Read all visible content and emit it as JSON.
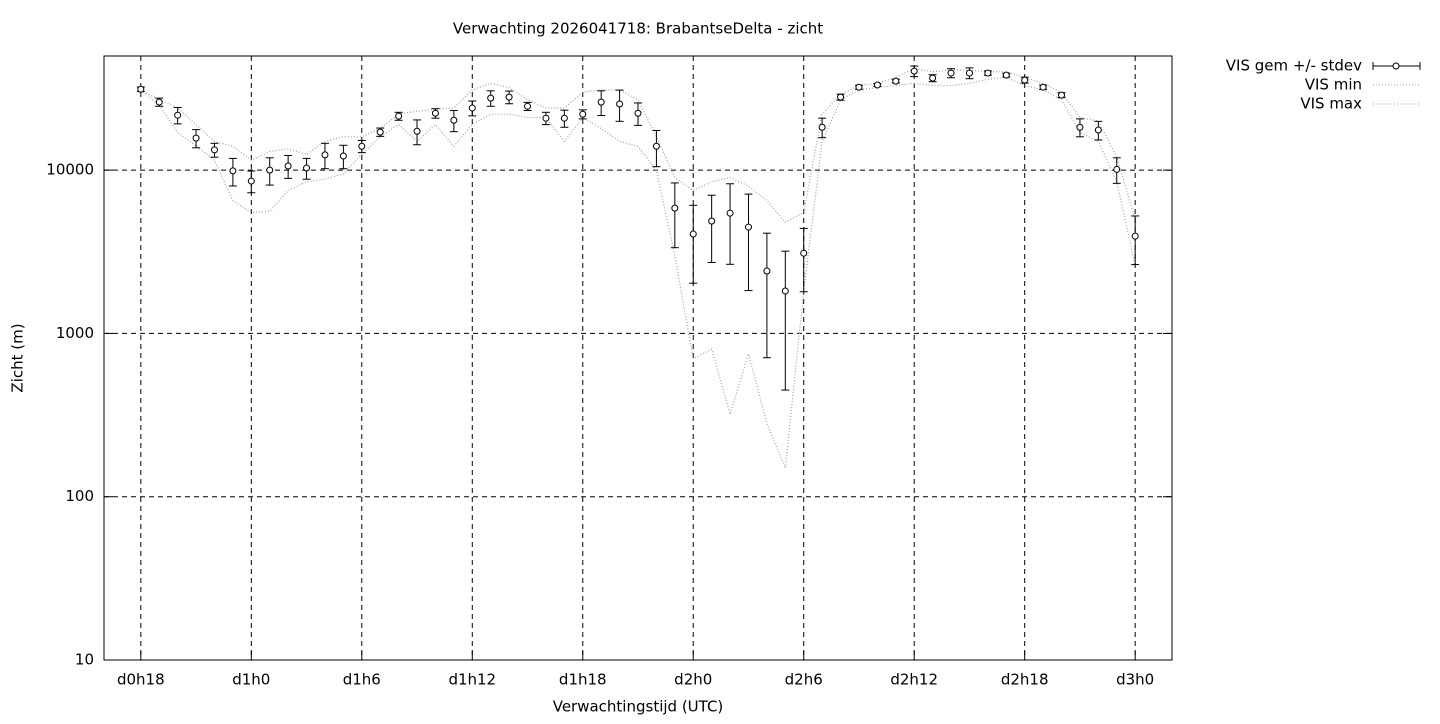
{
  "chart_data": {
    "type": "errorline",
    "title": "Verwachting 2026041718: BrabantseDelta - zicht",
    "x_label": "Verwachtingstijd (UTC)",
    "y_label": "Zicht (m)",
    "log_y": true,
    "grid": true,
    "legend": "outside-top-right",
    "xlim": [
      16,
      74
    ],
    "ylim": [
      10,
      50000
    ],
    "xticks": [
      {
        "value": 18,
        "label": "d0h18"
      },
      {
        "value": 24,
        "label": "d1h0"
      },
      {
        "value": 30,
        "label": "d1h6"
      },
      {
        "value": 36,
        "label": "d1h12"
      },
      {
        "value": 42,
        "label": "d1h18"
      },
      {
        "value": 48,
        "label": "d2h0"
      },
      {
        "value": 54,
        "label": "d2h6"
      },
      {
        "value": 60,
        "label": "d2h12"
      },
      {
        "value": 66,
        "label": "d2h18"
      },
      {
        "value": 72,
        "label": "d3h0"
      }
    ],
    "yticks": [
      10,
      100,
      1000,
      10000
    ],
    "x": [
      18,
      19,
      20,
      21,
      22,
      23,
      24,
      25,
      26,
      27,
      28,
      29,
      30,
      31,
      32,
      33,
      34,
      35,
      36,
      37,
      38,
      39,
      40,
      41,
      42,
      43,
      44,
      45,
      46,
      47,
      48,
      49,
      50,
      51,
      52,
      53,
      54,
      55,
      56,
      57,
      58,
      59,
      60,
      61,
      62,
      63,
      64,
      65,
      66,
      67,
      68,
      69,
      70,
      71,
      72
    ],
    "series": [
      {
        "name": "VIS gem +/- stdev",
        "color": "#000000",
        "values": [
          31300,
          26100,
          21700,
          15700,
          13300,
          9900,
          8570,
          10000,
          10600,
          10300,
          12400,
          12200,
          14000,
          17100,
          21400,
          17300,
          22300,
          20200,
          24000,
          27600,
          28000,
          24600,
          20800,
          20800,
          22000,
          26100,
          25400,
          22300,
          14000,
          5850,
          4060,
          4870,
          5450,
          4480,
          2410,
          1820,
          3100,
          18300,
          28000,
          32200,
          33200,
          35100,
          40400,
          36600,
          39300,
          39300,
          39300,
          38200,
          35600,
          32200,
          28800,
          18300,
          17600,
          10100,
          3940
        ],
        "stdev": [
          1000,
          1500,
          2500,
          2000,
          1300,
          1900,
          1300,
          1900,
          1700,
          1500,
          2200,
          2000,
          1200,
          1000,
          1200,
          3000,
          1500,
          3000,
          2500,
          3000,
          2500,
          1400,
          1800,
          2500,
          1400,
          4500,
          5500,
          3500,
          3500,
          2500,
          2030,
          2150,
          2800,
          2650,
          1700,
          1370,
          1300,
          2500,
          1200,
          900,
          700,
          900,
          3000,
          1800,
          2500,
          3000,
          1200,
          1000,
          1500,
          1000,
          1000,
          2300,
          2300,
          1800,
          1300
        ]
      },
      {
        "name": "VIS min",
        "color": "#a0a0a0",
        "values": [
          31000,
          25000,
          17000,
          14000,
          11500,
          6500,
          5500,
          5600,
          7500,
          8500,
          8800,
          9500,
          12500,
          16000,
          19000,
          15000,
          19000,
          14000,
          19000,
          22000,
          22000,
          21000,
          21000,
          15000,
          21000,
          18000,
          15000,
          14000,
          10000,
          3000,
          700,
          800,
          320,
          750,
          280,
          150,
          1800,
          15000,
          27000,
          31000,
          32000,
          33000,
          34000,
          33000,
          33000,
          34000,
          36000,
          37000,
          33000,
          31000,
          27000,
          17000,
          15000,
          8500,
          2600
        ]
      },
      {
        "name": "VIS max",
        "color": "#a0a0a0",
        "values": [
          31000,
          27000,
          24000,
          19000,
          15000,
          14000,
          11500,
          13000,
          13500,
          12500,
          15000,
          16000,
          16000,
          18000,
          22000,
          23000,
          23500,
          24000,
          31000,
          34000,
          32000,
          27000,
          24000,
          24000,
          30000,
          31000,
          31000,
          27000,
          16000,
          9000,
          7500,
          8500,
          9000,
          8000,
          6500,
          4800,
          5500,
          22000,
          29000,
          33000,
          34000,
          37000,
          42000,
          40000,
          41000,
          41000,
          40000,
          40000,
          37000,
          34000,
          30000,
          21000,
          20000,
          12000,
          5000
        ]
      }
    ]
  }
}
